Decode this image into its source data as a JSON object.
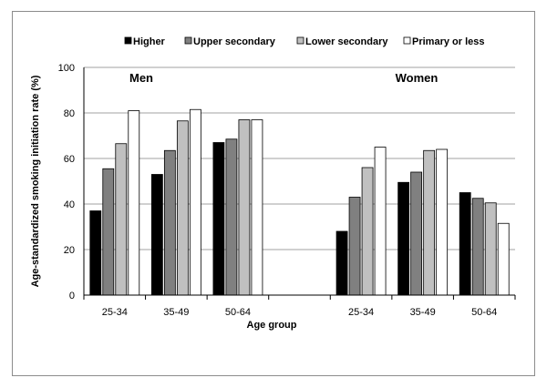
{
  "chart_data": {
    "type": "bar",
    "xlabel": "Age group",
    "ylabel": "Age-standardized  smoking  initiation  rate (%)",
    "ylim": [
      0,
      100
    ],
    "yticks": [
      0,
      20,
      40,
      60,
      80,
      100
    ],
    "grid": true,
    "legend_position": "top",
    "groups": [
      {
        "label": "Men",
        "categories": [
          "25-34",
          "35-49",
          "50-64"
        ]
      },
      {
        "label": "Women",
        "categories": [
          "25-34",
          "35-49",
          "50-64"
        ]
      }
    ],
    "categories": [
      "25-34",
      "35-49",
      "50-64",
      "25-34",
      "35-49",
      "50-64"
    ],
    "series": [
      {
        "name": "Higher",
        "color": "#000000",
        "values": [
          37,
          53,
          67,
          28,
          49.5,
          45
        ]
      },
      {
        "name": "Upper secondary",
        "color": "#808080",
        "values": [
          55.5,
          63.5,
          68.5,
          43,
          54,
          42.5
        ]
      },
      {
        "name": "Lower secondary",
        "color": "#c0c0c0",
        "values": [
          66.5,
          76.5,
          77,
          56,
          63.5,
          40.5
        ]
      },
      {
        "name": "Primary or less",
        "color": "#ffffff",
        "values": [
          81,
          81.5,
          77,
          65,
          64,
          31.5
        ]
      }
    ]
  }
}
